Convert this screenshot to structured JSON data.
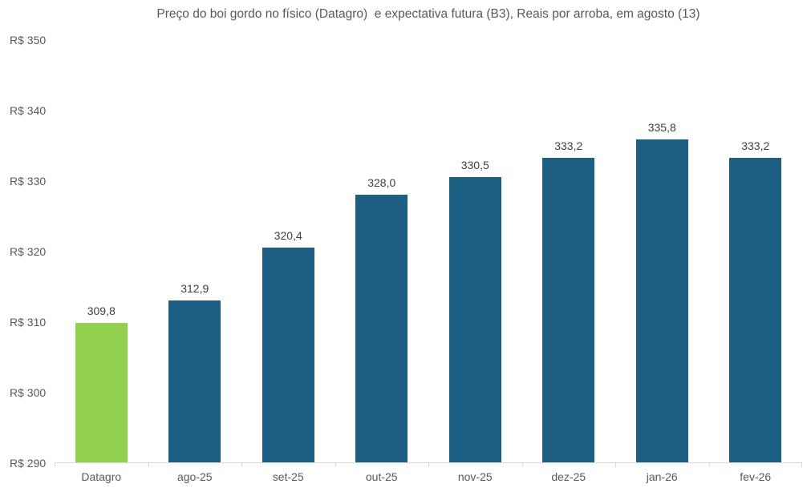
{
  "chart_data": {
    "type": "bar",
    "title": "Preço do boi gordo no físico (Datagro)  e expectativa futura (B3), Reais por arroba, em agosto (13)",
    "categories": [
      "Datagro",
      "ago-25",
      "set-25",
      "out-25",
      "nov-25",
      "dez-25",
      "jan-26",
      "fev-26"
    ],
    "values": [
      309.8,
      312.9,
      320.4,
      328.0,
      330.5,
      333.2,
      335.8,
      333.2
    ],
    "value_labels": [
      "309,8",
      "312,9",
      "320,4",
      "328,0",
      "330,5",
      "333,2",
      "335,8",
      "333,2"
    ],
    "bar_colors": [
      "#92d050",
      "#1d5f83",
      "#1d5f83",
      "#1d5f83",
      "#1d5f83",
      "#1d5f83",
      "#1d5f83",
      "#1d5f83"
    ],
    "y_ticks": [
      {
        "label": "R$ 350",
        "value": 350
      },
      {
        "label": "R$ 340",
        "value": 340
      },
      {
        "label": "R$ 330",
        "value": 330
      },
      {
        "label": "R$ 320",
        "value": 320
      },
      {
        "label": "R$ 310",
        "value": 310
      },
      {
        "label": "R$ 300",
        "value": 300
      },
      {
        "label": "R$ 290",
        "value": 290
      }
    ],
    "ylim": [
      290,
      350
    ],
    "xlabel": "",
    "ylabel": "",
    "grid": false,
    "legend": false
  },
  "colors": {
    "background": "#ffffff",
    "title_text": "#595959",
    "axis_text": "#595959",
    "value_label_text": "#404040",
    "axis_line": "#d9d9d9",
    "highlight_bar": "#92d050",
    "default_bar": "#1d5f83"
  }
}
